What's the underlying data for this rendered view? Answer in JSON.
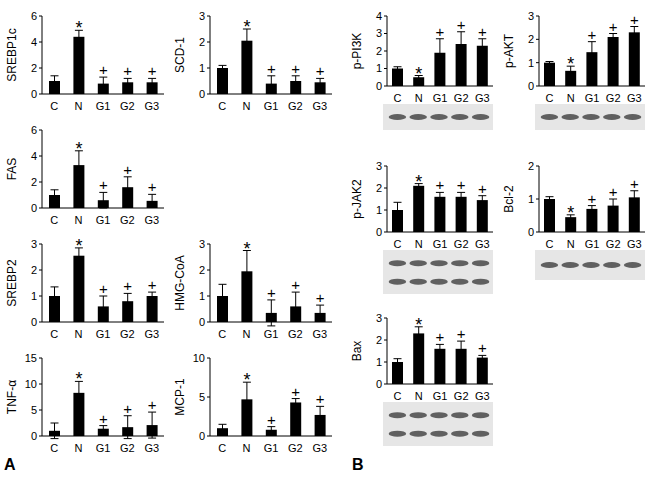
{
  "panel_labels": [
    "A",
    "B"
  ],
  "chart_data": [
    {
      "type": "bar",
      "ylabel": "SREBP1c",
      "categories": [
        "C",
        "N",
        "G1",
        "G2",
        "G3"
      ],
      "values": [
        1,
        4.4,
        0.8,
        0.9,
        0.9
      ],
      "errors": [
        0.4,
        0.5,
        0.5,
        0.3,
        0.3
      ],
      "annotations": [
        null,
        "*",
        "+",
        "+",
        "+"
      ],
      "ylim": [
        0,
        6
      ],
      "yticks": [
        0,
        2,
        4,
        6
      ],
      "color": "#000000"
    },
    {
      "type": "bar",
      "ylabel": "SCD-1",
      "categories": [
        "C",
        "N",
        "G1",
        "G2",
        "G3"
      ],
      "values": [
        1,
        2.05,
        0.4,
        0.5,
        0.45
      ],
      "errors": [
        0.1,
        0.45,
        0.3,
        0.2,
        0.15
      ],
      "annotations": [
        null,
        "*",
        "+",
        "+",
        "+"
      ],
      "ylim": [
        0,
        3
      ],
      "yticks": [
        0,
        1,
        2,
        3
      ],
      "color": "#000000"
    },
    {
      "type": "bar",
      "ylabel": "FAS",
      "categories": [
        "C",
        "N",
        "G1",
        "G2",
        "G3"
      ],
      "values": [
        1,
        3.3,
        0.6,
        1.6,
        0.55
      ],
      "errors": [
        0.4,
        1.1,
        0.6,
        0.8,
        0.5
      ],
      "annotations": [
        null,
        "*",
        "+",
        "+",
        "+"
      ],
      "ylim": [
        0,
        6
      ],
      "yticks": [
        0,
        2,
        4,
        6
      ],
      "color": "#000000"
    },
    {
      "type": "bar",
      "ylabel": "SREBP2",
      "categories": [
        "C",
        "N",
        "G1",
        "G2",
        "G3"
      ],
      "values": [
        1,
        2.55,
        0.6,
        0.8,
        1.0
      ],
      "errors": [
        0.35,
        0.3,
        0.4,
        0.3,
        0.15
      ],
      "annotations": [
        null,
        "*",
        "+",
        "+",
        "+"
      ],
      "ylim": [
        0,
        3
      ],
      "yticks": [
        0,
        1,
        2,
        3
      ],
      "color": "#000000"
    },
    {
      "type": "bar",
      "ylabel": "HMG-CoA",
      "categories": [
        "C",
        "N",
        "G1",
        "G2",
        "G3"
      ],
      "values": [
        1,
        1.95,
        0.35,
        0.6,
        0.35
      ],
      "errors": [
        0.45,
        0.8,
        0.5,
        0.55,
        0.3
      ],
      "annotations": [
        null,
        "*",
        "+",
        "+",
        "+"
      ],
      "ylim": [
        0,
        3
      ],
      "yticks": [
        0,
        1,
        2,
        3
      ],
      "color": "#000000"
    },
    {
      "type": "bar",
      "ylabel": "TNF-α",
      "categories": [
        "C",
        "N",
        "G1",
        "G2",
        "G3"
      ],
      "values": [
        1,
        8.3,
        1.4,
        1.7,
        2.1
      ],
      "errors": [
        1.5,
        2.2,
        0.6,
        2.2,
        2.5
      ],
      "annotations": [
        null,
        "*",
        "+",
        "+",
        "+"
      ],
      "ylim": [
        0,
        15
      ],
      "yticks": [
        0,
        5,
        10,
        15
      ],
      "color": "#000000"
    },
    {
      "type": "bar",
      "ylabel": "MCP-1",
      "categories": [
        "C",
        "N",
        "G1",
        "G2",
        "G3"
      ],
      "values": [
        1,
        4.7,
        0.8,
        4.3,
        2.7
      ],
      "errors": [
        0.5,
        2.2,
        0.4,
        0.5,
        1.1
      ],
      "annotations": [
        null,
        "*",
        "+",
        "+",
        "+"
      ],
      "ylim": [
        0,
        10
      ],
      "yticks": [
        0,
        5,
        10
      ],
      "color": "#000000"
    },
    {
      "type": "bar",
      "ylabel": "p-PI3K",
      "categories": [
        "C",
        "N",
        "G1",
        "G2",
        "G3"
      ],
      "values": [
        1,
        0.5,
        1.9,
        2.4,
        2.3
      ],
      "errors": [
        0.1,
        0.1,
        0.8,
        0.7,
        0.4
      ],
      "annotations": [
        null,
        "*",
        "+",
        "+",
        "+"
      ],
      "ylim": [
        0,
        4
      ],
      "yticks": [
        0,
        1,
        2,
        3,
        4
      ],
      "color": "#000000"
    },
    {
      "type": "bar",
      "ylabel": "p-AKT",
      "categories": [
        "C",
        "N",
        "G1",
        "G2",
        "G3"
      ],
      "values": [
        1,
        0.65,
        1.45,
        2.1,
        2.3
      ],
      "errors": [
        0.05,
        0.2,
        0.45,
        0.15,
        0.25
      ],
      "annotations": [
        null,
        "*",
        "+",
        "+",
        "+"
      ],
      "ylim": [
        0,
        3
      ],
      "yticks": [
        0,
        1,
        2,
        3
      ],
      "color": "#000000"
    },
    {
      "type": "bar",
      "ylabel": "p-JAK2",
      "categories": [
        "C",
        "N",
        "G1",
        "G2",
        "G3"
      ],
      "values": [
        1,
        2.1,
        1.6,
        1.6,
        1.45
      ],
      "errors": [
        0.35,
        0.1,
        0.2,
        0.2,
        0.2
      ],
      "annotations": [
        null,
        "*",
        "+",
        "+",
        "+"
      ],
      "ylim": [
        0,
        3
      ],
      "yticks": [
        0,
        1,
        2,
        3
      ],
      "color": "#000000"
    },
    {
      "type": "bar",
      "ylabel": "Bcl-2",
      "categories": [
        "C",
        "N",
        "G1",
        "G2",
        "G3"
      ],
      "values": [
        1,
        0.45,
        0.7,
        0.8,
        1.05
      ],
      "errors": [
        0.07,
        0.07,
        0.1,
        0.2,
        0.2
      ],
      "annotations": [
        null,
        "*",
        "+",
        "+",
        "+"
      ],
      "ylim": [
        0,
        2
      ],
      "yticks": [
        0,
        1,
        2
      ],
      "color": "#000000"
    },
    {
      "type": "bar",
      "ylabel": "Bax",
      "categories": [
        "C",
        "N",
        "G1",
        "G2",
        "G3"
      ],
      "values": [
        1,
        2.3,
        1.6,
        1.6,
        1.2
      ],
      "errors": [
        0.15,
        0.3,
        0.2,
        0.35,
        0.1
      ],
      "annotations": [
        null,
        "*",
        "+",
        "+",
        "+"
      ],
      "ylim": [
        0,
        3
      ],
      "yticks": [
        0,
        1,
        2,
        3
      ],
      "color": "#000000"
    }
  ]
}
